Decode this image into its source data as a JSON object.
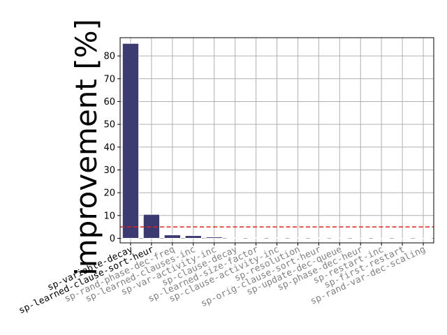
{
  "chart_data": {
    "type": "bar",
    "title": "",
    "xlabel": "",
    "ylabel": "improvement [%]",
    "categories": [
      "sp-variable-decay",
      "sp-learned-clause-sort-heur",
      "sp-rand-phase-dec-freq",
      "sp-learned-clauses-inc",
      "sp-var-activity-inc",
      "sp-clause-decay",
      "sp-learned-size-factor",
      "sp-clause-activity-inc",
      "sp-resolution",
      "sp-orig-clause-sort-heur",
      "sp-update-dec-queue",
      "sp-phase-dec-heur",
      "sp-restart-inc",
      "sp-first-restart",
      "sp-rand-var-dec-scaling"
    ],
    "values": [
      85.5,
      10.5,
      1.5,
      1.2,
      0.6,
      0.3,
      0.3,
      0.3,
      0.3,
      0.3,
      0.2,
      0.0,
      0.0,
      0.0,
      0.0
    ],
    "highlighted_label_count": 2,
    "threshold": 5,
    "ylim": [
      -2,
      88
    ],
    "yticks": [
      0,
      10,
      20,
      30,
      40,
      50,
      60,
      70,
      80
    ],
    "grid": true,
    "colors": {
      "bar": "#3b3b72",
      "threshold_line": "#e8211a",
      "grid": "#b0b0b0",
      "label_highlight": "#000000",
      "label_muted": "#808080"
    }
  }
}
